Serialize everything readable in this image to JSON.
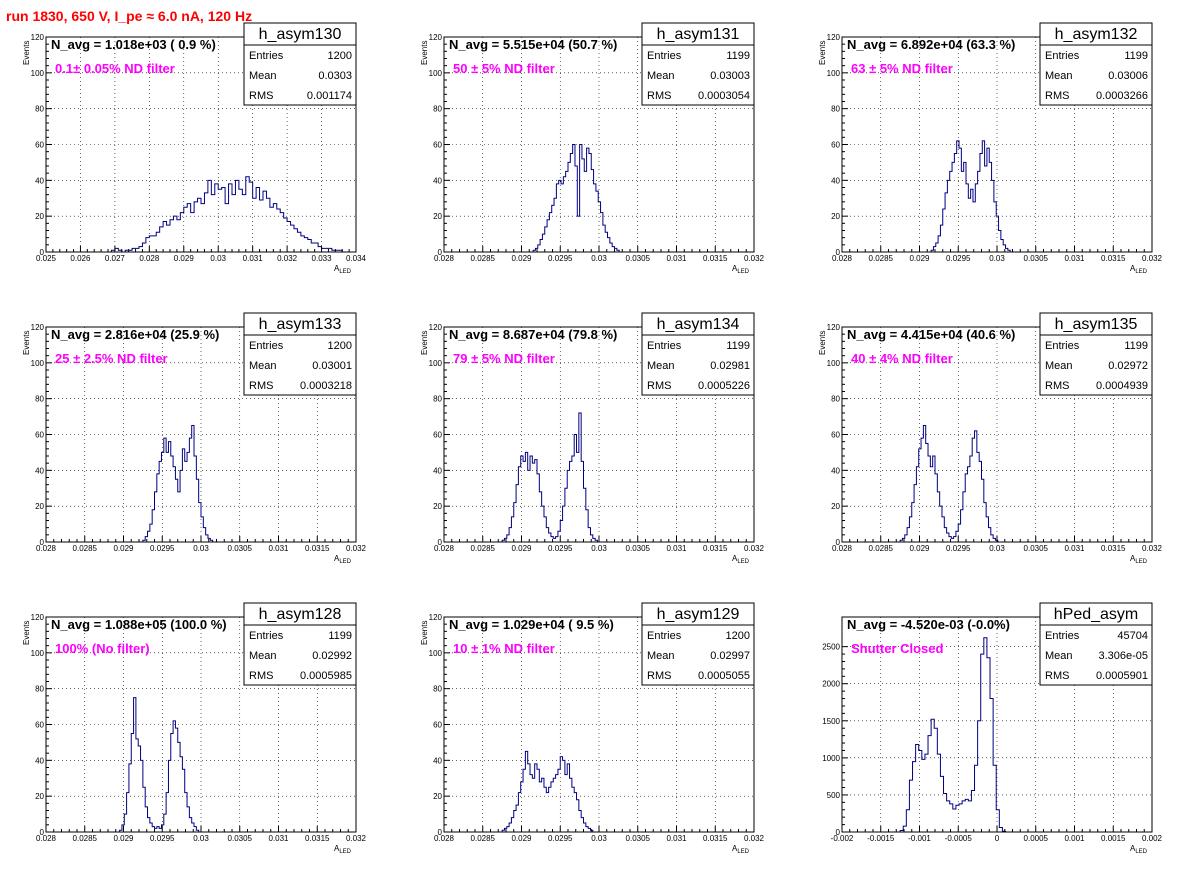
{
  "page": {
    "title": "run 1830,   650 V, I_pe ≈ 6.0 nA, 120 Hz"
  },
  "colors": {
    "title": "#ff0000",
    "filter_label": "#ff00ff",
    "histogram": "#000080"
  },
  "chart_data": [
    {
      "type": "bar",
      "name": "h_asym130",
      "navg": "N_avg = 1.018e+03 ( 0.9 %)",
      "filter": "0.1± 0.05% ND filter",
      "stats": {
        "Entries": "1200",
        "Mean": "0.0303",
        "RMS": "0.001174"
      },
      "xlabel": "A",
      "xlabel_sub": "LED",
      "ylabel": "Events",
      "xlim": [
        0.025,
        0.034
      ],
      "ylim": [
        0,
        120
      ],
      "xticks": [
        "0.025",
        "0.026",
        "0.027",
        "0.028",
        "0.029",
        "0.03",
        "0.031",
        "0.032",
        "0.033",
        "0.034"
      ],
      "yticks": [
        "0",
        "20",
        "40",
        "60",
        "80",
        "100",
        "120"
      ],
      "hist": {
        "start": 0.0269,
        "width": 0.0001,
        "values": [
          1,
          2,
          1,
          0,
          1,
          1,
          2,
          2,
          3,
          5,
          8,
          9,
          9,
          11,
          14,
          17,
          15,
          18,
          20,
          18,
          22,
          25,
          27,
          22,
          28,
          30,
          27,
          33,
          40,
          32,
          38,
          35,
          36,
          27,
          38,
          32,
          40,
          35,
          32,
          42,
          39,
          30,
          36,
          29,
          34,
          30,
          25,
          27,
          24,
          22,
          19,
          17,
          15,
          13,
          11,
          9,
          8,
          7,
          5,
          5,
          3,
          2,
          2,
          2,
          1,
          1,
          1
        ]
      }
    },
    {
      "type": "bar",
      "name": "h_asym131",
      "navg": "N_avg = 5.515e+04 (50.7 %)",
      "filter": "50 ± 5% ND filter",
      "stats": {
        "Entries": "1199",
        "Mean": "0.03003",
        "RMS": "0.0003054"
      },
      "xlabel": "A",
      "xlabel_sub": "LED",
      "ylabel": "Events",
      "xlim": [
        0.028,
        0.032
      ],
      "ylim": [
        0,
        120
      ],
      "xticks": [
        "0.028",
        "0.0285",
        "0.029",
        "0.0295",
        "0.03",
        "0.0305",
        "0.031",
        "0.0315",
        "0.032"
      ],
      "yticks": [
        "0",
        "20",
        "40",
        "60",
        "80",
        "100",
        "120"
      ],
      "hist": {
        "start": 0.02915,
        "width": 3e-05,
        "values": [
          1,
          2,
          4,
          7,
          10,
          14,
          18,
          22,
          26,
          30,
          38,
          40,
          38,
          42,
          45,
          50,
          55,
          60,
          48,
          20,
          60,
          52,
          45,
          58,
          55,
          46,
          38,
          34,
          28,
          22,
          15,
          11,
          8,
          5,
          3,
          2,
          1
        ]
      }
    },
    {
      "type": "bar",
      "name": "h_asym132",
      "navg": "N_avg = 6.892e+04 (63.3 %)",
      "filter": "63 ± 5% ND filter",
      "stats": {
        "Entries": "1199",
        "Mean": "0.03006",
        "RMS": "0.0003266"
      },
      "xlabel": "A",
      "xlabel_sub": "LED",
      "ylabel": "Events",
      "xlim": [
        0.028,
        0.032
      ],
      "ylim": [
        0,
        120
      ],
      "xticks": [
        "0.028",
        "0.0285",
        "0.029",
        "0.0295",
        "0.03",
        "0.0305",
        "0.031",
        "0.0315",
        "0.032"
      ],
      "yticks": [
        "0",
        "20",
        "40",
        "60",
        "80",
        "100",
        "120"
      ],
      "hist": {
        "start": 0.02915,
        "width": 3e-05,
        "values": [
          1,
          3,
          5,
          9,
          15,
          24,
          33,
          40,
          45,
          50,
          55,
          62,
          58,
          45,
          50,
          38,
          30,
          35,
          28,
          38,
          45,
          55,
          62,
          48,
          58,
          50,
          40,
          28,
          20,
          12,
          7,
          4,
          2,
          1
        ]
      }
    },
    {
      "type": "bar",
      "name": "h_asym133",
      "navg": "N_avg = 2.816e+04 (25.9 %)",
      "filter": "25 ± 2.5% ND filter",
      "stats": {
        "Entries": "1200",
        "Mean": "0.03001",
        "RMS": "0.0003218"
      },
      "xlabel": "A",
      "xlabel_sub": "LED",
      "ylabel": "Events",
      "xlim": [
        0.028,
        0.032
      ],
      "ylim": [
        0,
        120
      ],
      "xticks": [
        "0.028",
        "0.0285",
        "0.029",
        "0.0295",
        "0.03",
        "0.0305",
        "0.031",
        "0.0315",
        "0.032"
      ],
      "yticks": [
        "0",
        "20",
        "40",
        "60",
        "80",
        "100",
        "120"
      ],
      "hist": {
        "start": 0.02925,
        "width": 3e-05,
        "values": [
          1,
          3,
          6,
          10,
          18,
          28,
          38,
          45,
          50,
          58,
          50,
          56,
          48,
          42,
          35,
          28,
          40,
          52,
          45,
          50,
          58,
          65,
          48,
          35,
          22,
          14,
          8,
          4,
          2,
          1
        ]
      }
    },
    {
      "type": "bar",
      "name": "h_asym134",
      "navg": "N_avg = 8.687e+04 (79.8 %)",
      "filter": "79 ± 5% ND filter",
      "stats": {
        "Entries": "1199",
        "Mean": "0.02981",
        "RMS": "0.0005226"
      },
      "xlabel": "A",
      "xlabel_sub": "LED",
      "ylabel": "Events",
      "xlim": [
        0.028,
        0.032
      ],
      "ylim": [
        0,
        120
      ],
      "xticks": [
        "0.028",
        "0.0285",
        "0.029",
        "0.0295",
        "0.03",
        "0.0305",
        "0.031",
        "0.0315",
        "0.032"
      ],
      "yticks": [
        "0",
        "20",
        "40",
        "60",
        "80",
        "100",
        "120"
      ],
      "hist": {
        "start": 0.02875,
        "width": 3e-05,
        "values": [
          1,
          2,
          4,
          8,
          14,
          22,
          32,
          42,
          48,
          45,
          50,
          40,
          48,
          44,
          46,
          38,
          28,
          20,
          14,
          8,
          5,
          3,
          2,
          3,
          6,
          12,
          20,
          30,
          40,
          45,
          48,
          60,
          50,
          72,
          45,
          30,
          18,
          8,
          4,
          2,
          1
        ]
      }
    },
    {
      "type": "bar",
      "name": "h_asym135",
      "navg": "N_avg = 4.415e+04 (40.6 %)",
      "filter": "40 ± 4% ND filter",
      "stats": {
        "Entries": "1199",
        "Mean": "0.02972",
        "RMS": "0.0004939"
      },
      "xlabel": "A",
      "xlabel_sub": "LED",
      "ylabel": "Events",
      "xlim": [
        0.028,
        0.032
      ],
      "ylim": [
        0,
        120
      ],
      "xticks": [
        "0.028",
        "0.0285",
        "0.029",
        "0.0295",
        "0.03",
        "0.0305",
        "0.031",
        "0.0315",
        "0.032"
      ],
      "yticks": [
        "0",
        "20",
        "40",
        "60",
        "80",
        "100",
        "120"
      ],
      "hist": {
        "start": 0.02875,
        "width": 3e-05,
        "values": [
          1,
          2,
          4,
          8,
          14,
          22,
          32,
          42,
          52,
          58,
          65,
          55,
          48,
          42,
          48,
          38,
          28,
          20,
          14,
          8,
          5,
          3,
          2,
          3,
          6,
          10,
          18,
          28,
          38,
          42,
          48,
          58,
          62,
          50,
          45,
          35,
          22,
          14,
          8,
          4,
          2,
          1
        ]
      }
    },
    {
      "type": "bar",
      "name": "h_asym128",
      "navg": "N_avg = 1.088e+05 (100.0 %)",
      "filter": "100% (No filter)",
      "stats": {
        "Entries": "1199",
        "Mean": "0.02992",
        "RMS": "0.0005985"
      },
      "xlabel": "A",
      "xlabel_sub": "LED",
      "ylabel": "Events",
      "xlim": [
        0.028,
        0.032
      ],
      "ylim": [
        0,
        120
      ],
      "xticks": [
        "0.028",
        "0.0285",
        "0.029",
        "0.0295",
        "0.03",
        "0.0305",
        "0.031",
        "0.0315",
        "0.032"
      ],
      "yticks": [
        "0",
        "20",
        "40",
        "60",
        "80",
        "100",
        "120"
      ],
      "hist": {
        "start": 0.02895,
        "width": 3e-05,
        "values": [
          1,
          4,
          10,
          22,
          38,
          55,
          75,
          52,
          48,
          40,
          25,
          14,
          8,
          5,
          3,
          2,
          3,
          2,
          4,
          10,
          22,
          40,
          55,
          62,
          58,
          50,
          42,
          35,
          22,
          14,
          8,
          5,
          3,
          1
        ]
      }
    },
    {
      "type": "bar",
      "name": "h_asym129",
      "navg": "N_avg = 1.029e+04 ( 9.5 %)",
      "filter": "10 ± 1% ND filter",
      "stats": {
        "Entries": "1200",
        "Mean": "0.02997",
        "RMS": "0.0005055"
      },
      "xlabel": "A",
      "xlabel_sub": "LED",
      "ylabel": "Events",
      "xlim": [
        0.028,
        0.032
      ],
      "ylim": [
        0,
        120
      ],
      "xticks": [
        "0.028",
        "0.0285",
        "0.029",
        "0.0295",
        "0.03",
        "0.0305",
        "0.031",
        "0.0315",
        "0.032"
      ],
      "yticks": [
        "0",
        "20",
        "40",
        "60",
        "80",
        "100",
        "120"
      ],
      "hist": {
        "start": 0.02875,
        "width": 3e-05,
        "values": [
          1,
          2,
          3,
          5,
          8,
          12,
          15,
          22,
          28,
          35,
          45,
          38,
          32,
          30,
          38,
          35,
          28,
          30,
          25,
          22,
          25,
          28,
          30,
          32,
          35,
          42,
          40,
          32,
          38,
          30,
          25,
          22,
          18,
          12,
          8,
          5,
          3,
          2,
          1
        ]
      }
    },
    {
      "type": "bar",
      "name": "hPed_asym",
      "navg": "N_avg = -4.520e-03 (-0.0%)",
      "filter": "Shutter Closed",
      "stats": {
        "Entries": "45704",
        "Mean": "3.306e-05",
        "RMS": "0.0005901"
      },
      "xlabel": "A",
      "xlabel_sub": "LED",
      "ylabel": "",
      "xlim": [
        -0.002,
        0.002
      ],
      "ylim": [
        0,
        2900
      ],
      "xticks": [
        "-0.002",
        "-0.0015",
        "-0.001",
        "-0.0005",
        "0",
        "0.0005",
        "0.001",
        "0.0015",
        "0.002"
      ],
      "yticks": [
        "0",
        "500",
        "1000",
        "1500",
        "2000",
        "2500"
      ],
      "hist": {
        "start": -0.00125,
        "width": 4e-05,
        "values": [
          20,
          80,
          300,
          700,
          950,
          1180,
          1100,
          980,
          1050,
          1300,
          1520,
          1400,
          1050,
          750,
          520,
          420,
          380,
          310,
          360,
          380,
          420,
          440,
          420,
          560,
          900,
          1500,
          2400,
          2620,
          2350,
          1800,
          900,
          300,
          60,
          10
        ]
      }
    }
  ]
}
